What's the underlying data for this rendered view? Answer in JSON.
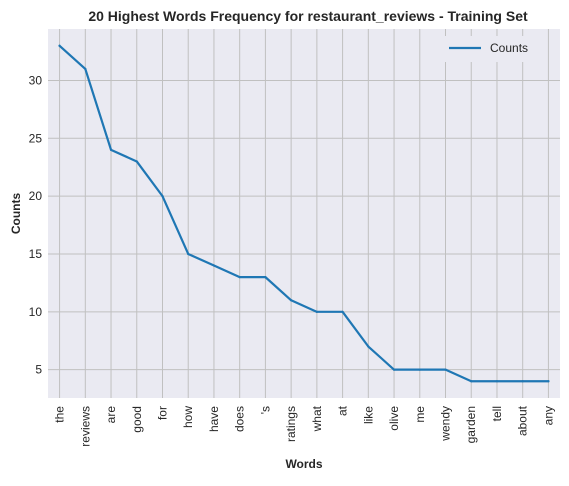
{
  "chart_data": {
    "type": "line",
    "title": "20 Highest Words Frequency for restaurant_reviews - Training Set",
    "xlabel": "Words",
    "ylabel": "Counts",
    "categories": [
      "the",
      "reviews",
      "are",
      "good",
      "for",
      "how",
      "have",
      "does",
      "'s",
      "ratings",
      "what",
      "at",
      "like",
      "olive",
      "me",
      "wendy",
      "garden",
      "tell",
      "about",
      "any"
    ],
    "series": [
      {
        "name": "Counts",
        "values": [
          33,
          31,
          24,
          23,
          20,
          15,
          14,
          13,
          13,
          11,
          10,
          10,
          7,
          5,
          5,
          5,
          4,
          4,
          4,
          4
        ]
      }
    ],
    "y_ticks": [
      5,
      10,
      15,
      20,
      25,
      30
    ],
    "ylim": [
      2.55,
      34.45
    ],
    "grid": true,
    "legend_position": "top-right",
    "colors": {
      "line": "#1f77b4",
      "plot_background": "#eaeaf2",
      "grid": "#c0c0c0",
      "text": "#262626"
    }
  }
}
